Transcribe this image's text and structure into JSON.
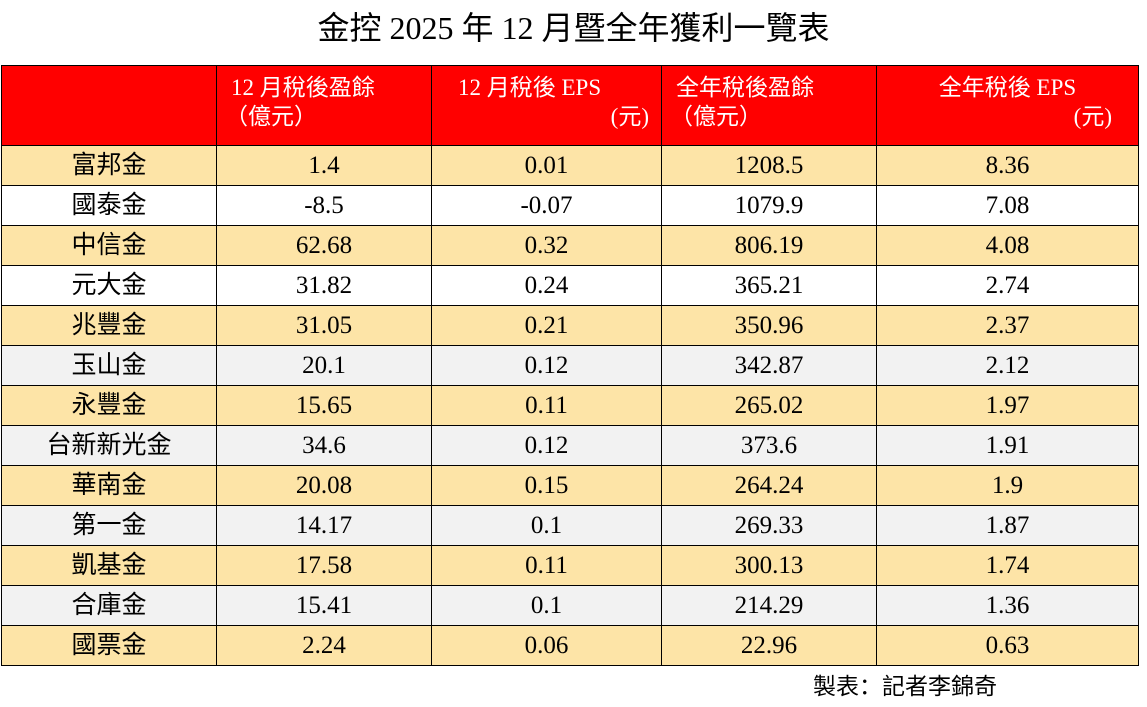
{
  "title": "金控 2025 年 12 月暨全年獲利一覽表",
  "header": {
    "col1_line1": "12 月稅後盈餘",
    "col1_line2": "（億元）",
    "col2_line1": "12 月稅後 EPS",
    "col2_line2": "(元)",
    "col3_line1": "全年稅後盈餘",
    "col3_line2": "（億元）",
    "col4_line1": "全年稅後 EPS",
    "col4_line2": "(元)",
    "header_color": "#ff0000"
  },
  "rows": [
    {
      "name": "富邦金",
      "dec_profit": "1.4",
      "dec_eps": "0.01",
      "year_profit": "1208.5",
      "year_eps": "8.36",
      "band": "tan"
    },
    {
      "name": "國泰金",
      "dec_profit": "-8.5",
      "dec_eps": "-0.07",
      "year_profit": "1079.9",
      "year_eps": "7.08",
      "band": "white"
    },
    {
      "name": "中信金",
      "dec_profit": "62.68",
      "dec_eps": "0.32",
      "year_profit": "806.19",
      "year_eps": "4.08",
      "band": "tan"
    },
    {
      "name": "元大金",
      "dec_profit": "31.82",
      "dec_eps": "0.24",
      "year_profit": "365.21",
      "year_eps": "2.74",
      "band": "white"
    },
    {
      "name": "兆豐金",
      "dec_profit": "31.05",
      "dec_eps": "0.21",
      "year_profit": "350.96",
      "year_eps": "2.37",
      "band": "tan"
    },
    {
      "name": "玉山金",
      "dec_profit": "20.1",
      "dec_eps": "0.12",
      "year_profit": "342.87",
      "year_eps": "2.12",
      "band": "gray"
    },
    {
      "name": "永豐金",
      "dec_profit": "15.65",
      "dec_eps": "0.11",
      "year_profit": "265.02",
      "year_eps": "1.97",
      "band": "tan"
    },
    {
      "name": "台新新光金",
      "dec_profit": "34.6",
      "dec_eps": "0.12",
      "year_profit": "373.6",
      "year_eps": "1.91",
      "band": "gray"
    },
    {
      "name": "華南金",
      "dec_profit": "20.08",
      "dec_eps": "0.15",
      "year_profit": "264.24",
      "year_eps": "1.9",
      "band": "tan"
    },
    {
      "name": "第一金",
      "dec_profit": "14.17",
      "dec_eps": "0.1",
      "year_profit": "269.33",
      "year_eps": "1.87",
      "band": "gray"
    },
    {
      "name": "凱基金",
      "dec_profit": "17.58",
      "dec_eps": "0.11",
      "year_profit": "300.13",
      "year_eps": "1.74",
      "band": "tan"
    },
    {
      "name": "合庫金",
      "dec_profit": "15.41",
      "dec_eps": "0.1",
      "year_profit": "214.29",
      "year_eps": "1.36",
      "band": "gray"
    },
    {
      "name": "國票金",
      "dec_profit": "2.24",
      "dec_eps": "0.06",
      "year_profit": "22.96",
      "year_eps": "0.63",
      "band": "tan"
    }
  ],
  "credit": "製表：記者李錦奇"
}
